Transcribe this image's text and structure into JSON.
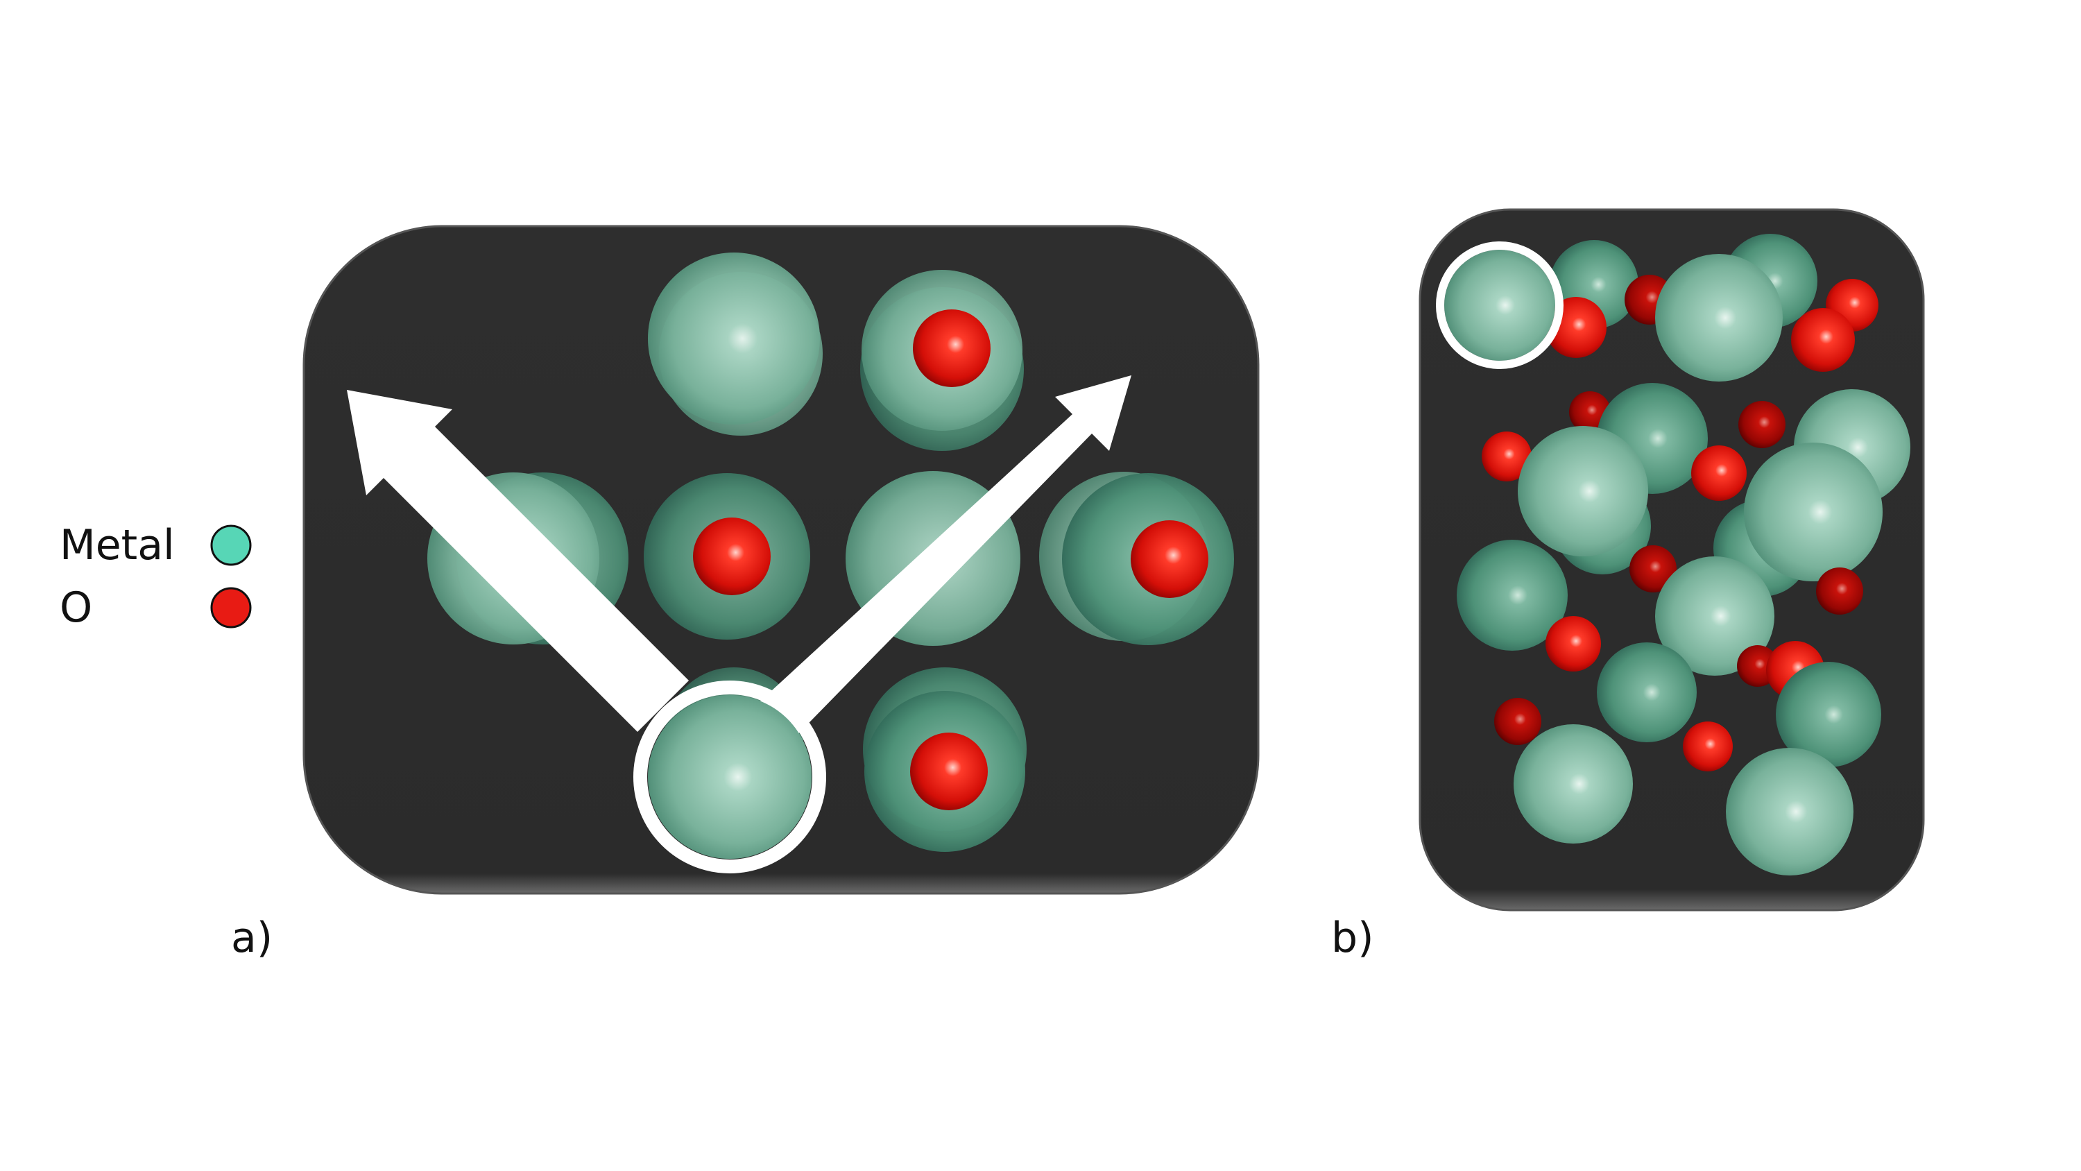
{
  "legend": {
    "items": [
      {
        "label": "Metal",
        "color": "#57d6b6"
      },
      {
        "label": "O",
        "color": "#e81b14"
      }
    ]
  },
  "panels": [
    {
      "label": "a)"
    },
    {
      "label": "b)"
    }
  ],
  "colors": {
    "panel_bg": "#2b2b2b",
    "metal_atom": "#8fc4ae",
    "oxygen_atom": "#e0150f",
    "highlight": "#ffffff"
  }
}
